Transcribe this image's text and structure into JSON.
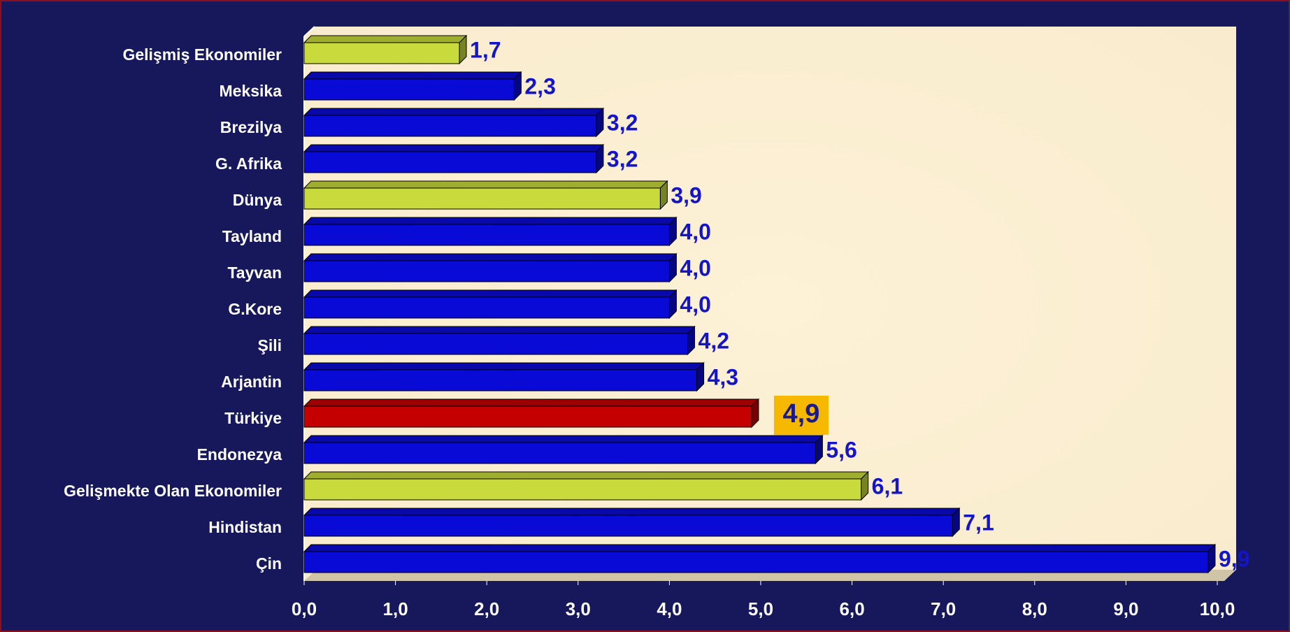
{
  "chart_data": {
    "type": "bar",
    "orientation": "horizontal",
    "categories": [
      "Gelişmiş Ekonomiler",
      "Meksika",
      "Brezilya",
      "G. Afrika",
      "Dünya",
      "Tayland",
      "Tayvan",
      "G.Kore",
      "Şili",
      "Arjantin",
      "Türkiye",
      "Endonezya",
      "Gelişmekte Olan Ekonomiler",
      "Hindistan",
      "Çin"
    ],
    "values": [
      1.7,
      2.3,
      3.2,
      3.2,
      3.9,
      4.0,
      4.0,
      4.0,
      4.2,
      4.3,
      4.9,
      5.6,
      6.1,
      7.1,
      9.9
    ],
    "value_labels": [
      "1,7",
      "2,3",
      "3,2",
      "3,2",
      "3,9",
      "4,0",
      "4,0",
      "4,0",
      "4,2",
      "4,3",
      "4,9",
      "5,6",
      "6,1",
      "7,1",
      "9,9"
    ],
    "colors": [
      "#c8da3c",
      "#0a0ad6",
      "#0a0ad6",
      "#0a0ad6",
      "#c8da3c",
      "#0a0ad6",
      "#0a0ad6",
      "#0a0ad6",
      "#0a0ad6",
      "#0a0ad6",
      "#c40000",
      "#0a0ad6",
      "#c8da3c",
      "#0a0ad6",
      "#0a0ad6"
    ],
    "highlight": "Türkiye",
    "highlight_color": "#f7b800",
    "xlim": [
      0,
      10
    ],
    "xticks": [
      {
        "value": 0,
        "label": "0,0"
      },
      {
        "value": 1,
        "label": "1,0"
      },
      {
        "value": 2,
        "label": "2,0"
      },
      {
        "value": 3,
        "label": "3,0"
      },
      {
        "value": 4,
        "label": "4,0"
      },
      {
        "value": 5,
        "label": "5,0"
      },
      {
        "value": 6,
        "label": "6,0"
      },
      {
        "value": 7,
        "label": "7,0"
      },
      {
        "value": 8,
        "label": "8,0"
      },
      {
        "value": 9,
        "label": "9,0"
      },
      {
        "value": 10,
        "label": "10,0"
      }
    ],
    "grid": false
  }
}
